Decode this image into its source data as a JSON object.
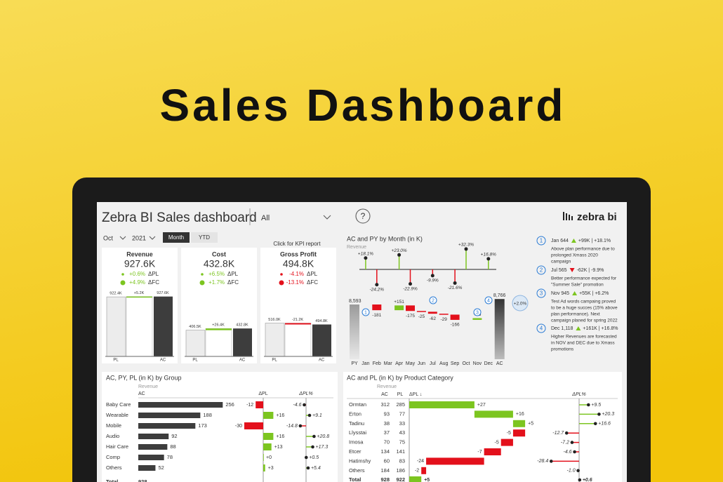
{
  "header": {
    "title": "Sales Dashboard"
  },
  "app": {
    "title": "Zebra BI Sales dashboard",
    "filter": "All",
    "help": "?",
    "logo": "zebra bi"
  },
  "filters": {
    "month": "Oct",
    "year": "2021",
    "buttons": [
      "Month",
      "YTD"
    ],
    "kpi_link": "Click for KPI report"
  },
  "kpis": [
    {
      "title": "Revenue",
      "value": "927.6K",
      "variances": [
        {
          "value": "+0.6%",
          "label": "ΔPL"
        },
        {
          "value": "+4.9%",
          "label": "ΔFC"
        }
      ],
      "bars": {
        "pl": "922.4K",
        "delta": "+5.2K",
        "ac": "927.6K"
      },
      "axis": [
        "PL",
        "AC"
      ]
    },
    {
      "title": "Cost",
      "value": "432.8K",
      "variances": [
        {
          "value": "+6.5%",
          "label": "ΔPL"
        },
        {
          "value": "+1.7%",
          "label": "ΔFC"
        }
      ],
      "bars": {
        "pl": "406.5K",
        "delta": "+26.4K",
        "ac": "432.8K"
      },
      "axis": [
        "PL",
        "AC"
      ]
    },
    {
      "title": "Gross Profit",
      "value": "494.8K",
      "variances": [
        {
          "value": "-4.1%",
          "label": "ΔPL"
        },
        {
          "value": "-13.1%",
          "label": "ΔFC"
        }
      ],
      "bars": {
        "pl": "516.0K",
        "delta": "-21.2K",
        "ac": "494.8K"
      },
      "axis": [
        "PL",
        "AC"
      ]
    }
  ],
  "month_chart": {
    "title": "AC and PY by Month (in K)",
    "subtitle": "Revenue",
    "categories": [
      "PY",
      "Jan",
      "Feb",
      "Mar",
      "Apr",
      "May",
      "Jun",
      "Jul",
      "Aug",
      "Sep",
      "Oct",
      "Nov",
      "Dec",
      "AC"
    ],
    "variance_pct": [
      null,
      "+18.1%",
      "-24.2%",
      null,
      "+23.0%",
      "-22.9%",
      null,
      "-9.9%",
      null,
      "-21.6%",
      "+32.3%",
      null,
      "+16.8%",
      null
    ],
    "bars": [
      "8,593",
      null,
      "-181",
      null,
      "+151",
      "-175",
      "-25",
      "-62",
      "-29",
      "-166",
      null,
      "+55",
      null,
      "8,766"
    ],
    "total_change": "+2.0%",
    "markers": [
      "1",
      "2",
      "3",
      "4"
    ]
  },
  "notes": [
    {
      "number": "1",
      "date": "Jan 644",
      "delta": "+99K | +18.1%",
      "text": [
        "Above plan performance due to",
        "prolonged Xmass 2020",
        "campaign"
      ]
    },
    {
      "number": "2",
      "date": "Jul 565",
      "delta": "-62K | -9.9%",
      "text": [
        "Better performance expected for",
        "\"Summer Sale\" promotion"
      ]
    },
    {
      "number": "3",
      "date": "Nov 945",
      "delta": "+55K | +6.2%",
      "text": [
        "Test Ad words campaing proved",
        "to be a huge succes (15% above",
        "plan performance). Next",
        "campaign planed for spring 2022"
      ]
    },
    {
      "number": "4",
      "date": "Dec 1,118",
      "delta": "+161K | +16.8%",
      "text": [
        "Higher Revenues are forecasted",
        "in NOV and DEC due to Xmass",
        "promotions"
      ]
    }
  ],
  "group_table": {
    "title": "AC, PY, PL (in K) by Group",
    "subtitle": "Revenue",
    "columns": [
      "AC",
      "ΔPL",
      "ΔPL%"
    ],
    "rows": [
      {
        "name": "Baby Care",
        "ac": "256",
        "dpl": "-12",
        "dplp": "-4.6"
      },
      {
        "name": "Wearable",
        "ac": "188",
        "dpl": "+16",
        "dplp": "+9.1"
      },
      {
        "name": "Mobile",
        "ac": "173",
        "dpl": "-30",
        "dplp": "-14.8"
      },
      {
        "name": "Audio",
        "ac": "92",
        "dpl": "+16",
        "dplp": "+20.8"
      },
      {
        "name": "Hair Care",
        "ac": "88",
        "dpl": "+13",
        "dplp": "+17.3"
      },
      {
        "name": "Comp",
        "ac": "78",
        "dpl": "+0",
        "dplp": "+0.5"
      },
      {
        "name": "Others",
        "ac": "52",
        "dpl": "+3",
        "dplp": "+5.4"
      }
    ],
    "total": {
      "name": "Total",
      "ac": "928"
    }
  },
  "product_table": {
    "title": "AC and PL (in K) by Product Category",
    "subtitle": "Revenue",
    "columns": [
      "AC",
      "PL",
      "ΔPL ↓",
      "ΔPL%"
    ],
    "rows": [
      {
        "name": "Ormtan",
        "ac": "312",
        "pl": "285",
        "dpl": "+27",
        "dplp": "+9.5"
      },
      {
        "name": "Erton",
        "ac": "93",
        "pl": "77",
        "dpl": "+16",
        "dplp": "+20.3"
      },
      {
        "name": "Tadinu",
        "ac": "38",
        "pl": "33",
        "dpl": "+5",
        "dplp": "+16.6"
      },
      {
        "name": "Llysstai",
        "ac": "37",
        "pl": "43",
        "dpl": "-5",
        "dplp": "-12.7"
      },
      {
        "name": "Imosa",
        "ac": "70",
        "pl": "75",
        "dpl": "-5",
        "dplp": "-7.2"
      },
      {
        "name": "Etcer",
        "ac": "134",
        "pl": "141",
        "dpl": "-7",
        "dplp": "-4.6"
      },
      {
        "name": "Hatimshy",
        "ac": "60",
        "pl": "83",
        "dpl": "-24",
        "dplp": "-28.4"
      },
      {
        "name": "Others",
        "ac": "184",
        "pl": "186",
        "dpl": "-2",
        "dplp": "-1.0"
      }
    ],
    "total": {
      "name": "Total",
      "ac": "928",
      "pl": "922",
      "dpl": "+5",
      "dplp": "+0.6"
    }
  }
}
